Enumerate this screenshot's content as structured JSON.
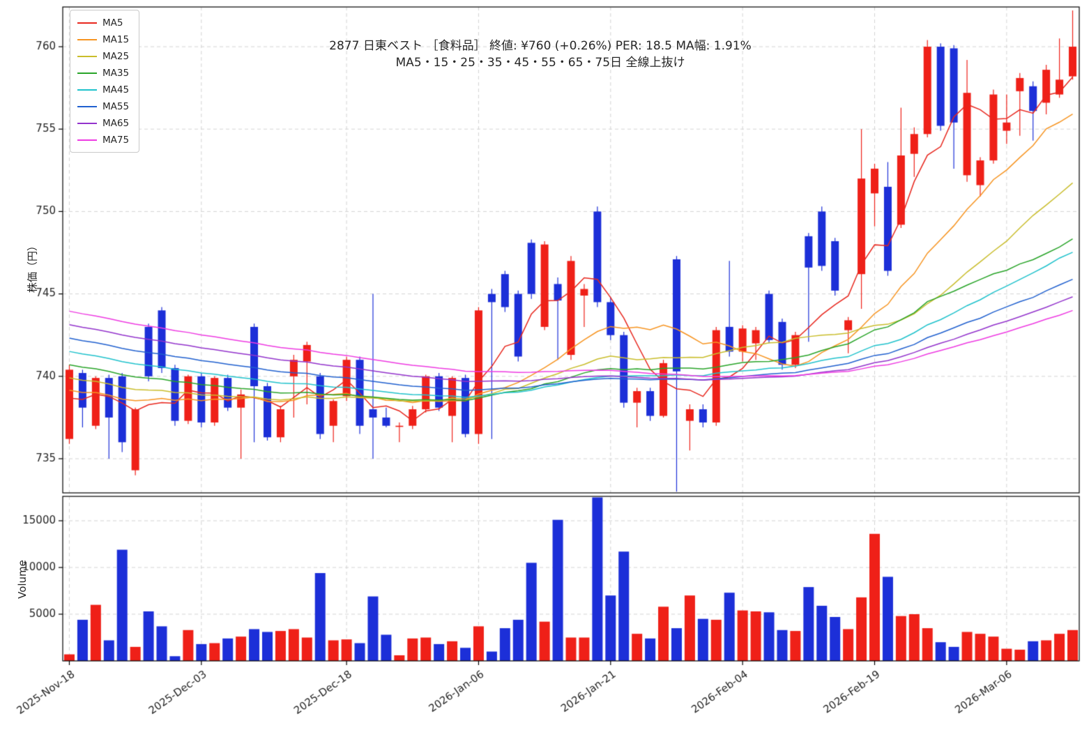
{
  "colors": {
    "background": "#ffffff",
    "up": "#ef2018",
    "down": "#1c2fd8",
    "grid": "#d4d4d4",
    "axis": "#000000",
    "text": "#262626"
  },
  "chart_data": {
    "type": "candlestick",
    "title": "2877  日東ベスト ［食料品］ 終値: ¥760 (+0.26%)  PER: 18.5  MA幅: 1.91%",
    "subtitle": "MA5・15・25・35・45・55・65・75日 全線上抜け",
    "ylabel_price": "株価（円）",
    "ylabel_volume": "Volume",
    "legend_position": "upper-left",
    "price_ticks": [
      735,
      740,
      745,
      750,
      755,
      760
    ],
    "volume_ticks": [
      5000,
      10000,
      15000
    ],
    "x_ticks": [
      {
        "index": 0,
        "label": "2025-Nov-18"
      },
      {
        "index": 10,
        "label": "2025-Dec-03"
      },
      {
        "index": 21,
        "label": "2025-Dec-18"
      },
      {
        "index": 31,
        "label": "2026-Jan-06"
      },
      {
        "index": 41,
        "label": "2026-Jan-21"
      },
      {
        "index": 51,
        "label": "2026-Feb-04"
      },
      {
        "index": 61,
        "label": "2026-Feb-19"
      },
      {
        "index": 71,
        "label": "2026-Mar-06"
      }
    ],
    "ma_series": [
      {
        "name": "MA5",
        "period": 5,
        "color": "#e8261d"
      },
      {
        "name": "MA15",
        "period": 15,
        "color": "#f79420"
      },
      {
        "name": "MA25",
        "period": 25,
        "color": "#c9bd2a"
      },
      {
        "name": "MA35",
        "period": 35,
        "color": "#28a428"
      },
      {
        "name": "MA45",
        "period": 45,
        "color": "#1fc2cc"
      },
      {
        "name": "MA55",
        "period": 55,
        "color": "#2060cf"
      },
      {
        "name": "MA65",
        "period": 65,
        "color": "#9333cc"
      },
      {
        "name": "MA75",
        "period": 75,
        "color": "#ee3ae2"
      }
    ],
    "ma_seed_prior_closes": {
      "start": 750,
      "end": 738,
      "count": 74
    },
    "columns": [
      "date",
      "open",
      "high",
      "low",
      "close",
      "volume"
    ],
    "candles": [
      [
        "2025-11-18",
        736.2,
        740.7,
        735.9,
        740.4,
        700
      ],
      [
        "2025-11-19",
        740.2,
        740.4,
        736.9,
        738.1,
        4400
      ],
      [
        "2025-11-20",
        737.0,
        740.0,
        736.8,
        739.9,
        6000
      ],
      [
        "2025-11-21",
        739.9,
        740.1,
        735.0,
        737.5,
        2200
      ],
      [
        "2025-11-25",
        740.0,
        740.2,
        735.4,
        736.0,
        11900
      ],
      [
        "2025-11-26",
        734.3,
        738.1,
        734.0,
        738.0,
        1500
      ],
      [
        "2025-11-27",
        743.0,
        743.2,
        739.7,
        740.0,
        5300
      ],
      [
        "2025-11-28",
        744.0,
        744.2,
        740.2,
        740.5,
        3700
      ],
      [
        "2025-12-01",
        740.5,
        740.7,
        737.0,
        737.3,
        500
      ],
      [
        "2025-12-02",
        737.3,
        740.1,
        737.1,
        740.0,
        3300
      ],
      [
        "2025-12-03",
        740.0,
        740.2,
        736.9,
        737.2,
        1800
      ],
      [
        "2025-12-04",
        737.2,
        740.0,
        737.0,
        739.9,
        1900
      ],
      [
        "2025-12-05",
        739.9,
        740.1,
        737.9,
        738.1,
        2400
      ],
      [
        "2025-12-08",
        738.1,
        739.2,
        735.0,
        738.9,
        2600
      ],
      [
        "2025-12-09",
        743.0,
        743.2,
        736.0,
        739.4,
        3400
      ],
      [
        "2025-12-10",
        739.4,
        739.6,
        736.1,
        736.3,
        3100
      ],
      [
        "2025-12-11",
        736.3,
        738.2,
        736.0,
        738.0,
        3200
      ],
      [
        "2025-12-12",
        740.0,
        741.3,
        737.5,
        741.0,
        3400
      ],
      [
        "2025-12-15",
        740.9,
        742.1,
        738.3,
        741.9,
        2500
      ],
      [
        "2025-12-16",
        740.0,
        740.2,
        736.2,
        736.5,
        9400
      ],
      [
        "2025-12-17",
        737.0,
        738.6,
        736.0,
        738.5,
        2200
      ],
      [
        "2025-12-18",
        738.8,
        741.2,
        738.5,
        741.0,
        2300
      ],
      [
        "2025-12-19",
        741.0,
        741.2,
        736.5,
        737.0,
        1900
      ],
      [
        "2025-12-22",
        738.0,
        745.0,
        735.0,
        737.5,
        6900
      ],
      [
        "2025-12-23",
        737.5,
        738.1,
        736.9,
        737.0,
        2800
      ],
      [
        "2025-12-24",
        737.0,
        737.2,
        736.0,
        737.0,
        600
      ],
      [
        "2025-12-25",
        737.0,
        738.2,
        736.8,
        738.0,
        2400
      ],
      [
        "2025-12-26",
        738.0,
        740.1,
        737.8,
        740.0,
        2500
      ],
      [
        "2025-12-29",
        740.0,
        740.2,
        737.9,
        738.1,
        1800
      ],
      [
        "2025-12-30",
        737.6,
        740.0,
        736.0,
        739.9,
        2100
      ],
      [
        "2026-01-05",
        739.9,
        740.1,
        736.3,
        736.5,
        1400
      ],
      [
        "2026-01-06",
        736.5,
        744.2,
        735.9,
        744.0,
        3700
      ],
      [
        "2026-01-07",
        745.0,
        745.3,
        736.2,
        744.5,
        1000
      ],
      [
        "2026-01-08",
        746.2,
        746.4,
        743.9,
        744.2,
        3500
      ],
      [
        "2026-01-09",
        745.0,
        745.2,
        740.9,
        741.2,
        4400
      ],
      [
        "2026-01-13",
        748.1,
        748.3,
        744.7,
        745.0,
        10500
      ],
      [
        "2026-01-14",
        743.0,
        748.2,
        742.8,
        748.0,
        4200
      ],
      [
        "2026-01-15",
        745.6,
        746.0,
        741.0,
        744.6,
        15100
      ],
      [
        "2026-01-16",
        741.3,
        747.3,
        741.0,
        747.0,
        2500
      ],
      [
        "2026-01-19",
        744.9,
        745.6,
        743.0,
        745.3,
        2500
      ],
      [
        "2026-01-20",
        750.0,
        750.3,
        744.2,
        744.5,
        17500
      ],
      [
        "2026-01-21",
        744.5,
        744.8,
        742.2,
        742.5,
        7000
      ],
      [
        "2026-01-22",
        742.5,
        742.7,
        738.1,
        738.4,
        11700
      ],
      [
        "2026-01-23",
        738.4,
        739.3,
        736.9,
        739.1,
        2900
      ],
      [
        "2026-01-26",
        739.1,
        739.3,
        737.3,
        737.6,
        2400
      ],
      [
        "2026-01-27",
        737.6,
        741.0,
        737.5,
        740.8,
        5800
      ],
      [
        "2026-01-28",
        747.1,
        747.3,
        733.0,
        740.3,
        3500
      ],
      [
        "2026-01-29",
        737.3,
        738.3,
        735.5,
        738.0,
        7000
      ],
      [
        "2026-01-30",
        738.0,
        738.3,
        736.9,
        737.2,
        4500
      ],
      [
        "2026-02-02",
        737.2,
        743.0,
        737.0,
        742.8,
        4400
      ],
      [
        "2026-02-03",
        743.0,
        747.0,
        741.2,
        741.5,
        7300
      ],
      [
        "2026-02-04",
        741.5,
        743.1,
        740.9,
        742.9,
        5400
      ],
      [
        "2026-02-05",
        742.0,
        743.0,
        741.0,
        742.8,
        5300
      ],
      [
        "2026-02-06",
        745.0,
        745.2,
        742.0,
        742.2,
        5200
      ],
      [
        "2026-02-09",
        743.3,
        743.5,
        740.4,
        740.7,
        3300
      ],
      [
        "2026-02-10",
        740.7,
        742.7,
        740.5,
        742.5,
        3200
      ],
      [
        "2026-02-12",
        748.5,
        748.7,
        742.1,
        746.6,
        7900
      ],
      [
        "2026-02-13",
        750.0,
        750.3,
        746.4,
        746.7,
        5900
      ],
      [
        "2026-02-16",
        748.2,
        748.4,
        744.9,
        745.2,
        4700
      ],
      [
        "2026-02-17",
        742.8,
        743.6,
        741.4,
        743.4,
        3400
      ],
      [
        "2026-02-18",
        746.2,
        755.0,
        744.1,
        752.0,
        6800
      ],
      [
        "2026-02-19",
        751.1,
        752.9,
        749.1,
        752.6,
        13600
      ],
      [
        "2026-02-20",
        751.5,
        753.0,
        746.1,
        746.4,
        9000
      ],
      [
        "2026-02-24",
        749.2,
        756.3,
        749.0,
        753.4,
        4800
      ],
      [
        "2026-02-25",
        753.5,
        755.1,
        752.1,
        754.7,
        5000
      ],
      [
        "2026-02-26",
        754.7,
        760.4,
        754.5,
        760.0,
        3500
      ],
      [
        "2026-02-27",
        760.0,
        760.2,
        754.9,
        755.2,
        2000
      ],
      [
        "2026-03-02",
        759.9,
        760.1,
        752.6,
        755.4,
        1500
      ],
      [
        "2026-03-03",
        752.2,
        759.2,
        751.8,
        757.2,
        3100
      ],
      [
        "2026-03-04",
        751.6,
        753.3,
        750.9,
        753.1,
        2900
      ],
      [
        "2026-03-05",
        753.1,
        757.4,
        752.9,
        757.1,
        2600
      ],
      [
        "2026-03-06",
        754.9,
        757.1,
        754.1,
        755.4,
        1300
      ],
      [
        "2026-03-09",
        757.3,
        758.4,
        754.6,
        758.1,
        1200
      ],
      [
        "2026-03-10",
        757.6,
        757.9,
        754.3,
        756.1,
        2100
      ],
      [
        "2026-03-11",
        756.6,
        758.9,
        755.9,
        758.6,
        2200
      ],
      [
        "2026-03-12",
        757.1,
        760.5,
        756.9,
        758.0,
        2900
      ],
      [
        "2026-03-13",
        758.2,
        762.2,
        758.0,
        760.0,
        3300
      ]
    ]
  }
}
